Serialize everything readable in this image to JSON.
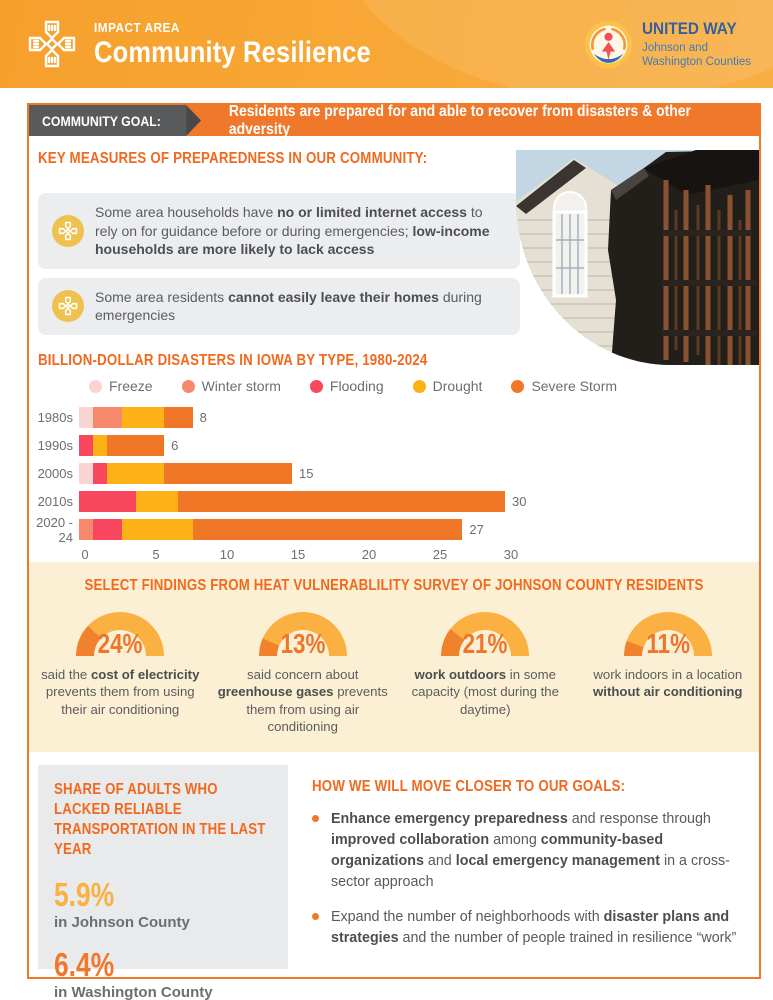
{
  "header": {
    "kicker": "IMPACT AREA",
    "title": "Community Resilience",
    "logo": {
      "brand": "UNITED WAY",
      "org_line1": "Johnson and",
      "org_line2": "Washington Counties"
    }
  },
  "icons": {
    "header_badge": "helping-hands-cross-icon",
    "callout_badge": "helping-hands-cross-icon",
    "logo_mark": "united-way-person-hand-icon"
  },
  "colors": {
    "header_orange": "#F8A837",
    "card_border": "#F0782A",
    "heading_orange": "#F2691E",
    "goal_label_gray": "#595A5C",
    "callout_gray": "#ECEDEE",
    "badge_gold": "#EFC24F",
    "cream": "#FCF0D4",
    "gauge_yellow": "#FBB042",
    "gauge_orange": "#F0812D",
    "stat_gold": "#FBB040",
    "stat_orange": "#F0772B",
    "text_gray": "#58595B"
  },
  "goal": {
    "label": "COMMUNITY GOAL:",
    "text": "Residents are prepared for and able to recover from disasters & other adversity"
  },
  "key_measures": {
    "heading": "KEY MEASURES OF PREPAREDNESS IN OUR COMMUNITY:",
    "items": [
      [
        {
          "t": "Some area households have "
        },
        {
          "t": "no or limited internet access",
          "b": 1
        },
        {
          "t": " to rely on for guidance before or during emergencies; "
        },
        {
          "t": "low-income households are more likely to lack access",
          "b": 1
        }
      ],
      [
        {
          "t": "Some area residents "
        },
        {
          "t": "cannot easily leave their homes",
          "b": 1
        },
        {
          "t": " during emergencies"
        }
      ]
    ]
  },
  "chart_data": {
    "type": "bar",
    "orientation": "horizontal",
    "stacked": true,
    "title": "BILLION-DOLLAR DISASTERS IN IOWA BY TYPE, 1980-2024",
    "categories": [
      "1980s",
      "1990s",
      "2000s",
      "2010s",
      "2020 - 24"
    ],
    "series": [
      {
        "name": "Freeze",
        "color": "#FAD4D0",
        "values": [
          1,
          0,
          1,
          0,
          0
        ]
      },
      {
        "name": "Winter storm",
        "color": "#F6886C",
        "values": [
          2,
          0,
          0,
          0,
          1
        ]
      },
      {
        "name": "Flooding",
        "color": "#FA4760",
        "values": [
          0,
          1,
          1,
          4,
          2
        ]
      },
      {
        "name": "Drought",
        "color": "#FCB117",
        "values": [
          3,
          1,
          4,
          3,
          5
        ]
      },
      {
        "name": "Severe Storm",
        "color": "#F07725",
        "values": [
          2,
          4,
          9,
          23,
          19
        ]
      }
    ],
    "totals": [
      8,
      6,
      15,
      30,
      27
    ],
    "xlim": [
      0,
      30
    ],
    "xticks": [
      0,
      5,
      10,
      15,
      20,
      25,
      30
    ],
    "legend_position": "top",
    "grid": false
  },
  "heat_survey": {
    "heading": "SELECT FINDINGS FROM HEAT VULNERABLILITY SURVEY OF JOHNSON COUNTY RESIDENTS",
    "gauges": [
      {
        "value": 24,
        "label": "24%",
        "caption": [
          {
            "t": "said the "
          },
          {
            "t": "cost of electricity",
            "b": 1
          },
          {
            "t": " prevents them from using their air conditioning"
          }
        ]
      },
      {
        "value": 13,
        "label": "13%",
        "caption": [
          {
            "t": "said concern about "
          },
          {
            "t": "greenhouse gases",
            "b": 1
          },
          {
            "t": " prevents them from using air conditioning"
          }
        ]
      },
      {
        "value": 21,
        "label": "21%",
        "caption": [
          {
            "t": "work outdoors",
            "b": 1
          },
          {
            "t": " in some capacity (most during the daytime)"
          }
        ]
      },
      {
        "value": 11,
        "label": "11%",
        "caption": [
          {
            "t": "work indoors in a location "
          },
          {
            "t": "without air conditioning",
            "b": 1
          }
        ]
      }
    ]
  },
  "transportation": {
    "heading": "SHARE OF ADULTS WHO LACKED RELIABLE TRANSPORTATION IN THE LAST YEAR",
    "stats": [
      {
        "value": "5.9%",
        "label": "in Johnson County",
        "color": "#FBB040"
      },
      {
        "value": "6.4%",
        "label": "in Washington County",
        "color": "#F0772B"
      }
    ]
  },
  "goals_forward": {
    "heading": "HOW WE WILL MOVE CLOSER TO OUR GOALS:",
    "bullets": [
      [
        {
          "t": "Enhance emergency preparedness",
          "b": 1
        },
        {
          "t": " and response through "
        },
        {
          "t": "improved collaboration",
          "b": 1
        },
        {
          "t": " among "
        },
        {
          "t": "community-based organizations",
          "b": 1
        },
        {
          "t": " and "
        },
        {
          "t": "local emergency management",
          "b": 1
        },
        {
          "t": " in a cross-sector approach"
        }
      ],
      [
        {
          "t": "Expand the number of neighborhoods with "
        },
        {
          "t": "disaster plans and strategies",
          "b": 1
        },
        {
          "t": " and the number of people trained in resilience “work”"
        }
      ]
    ]
  }
}
